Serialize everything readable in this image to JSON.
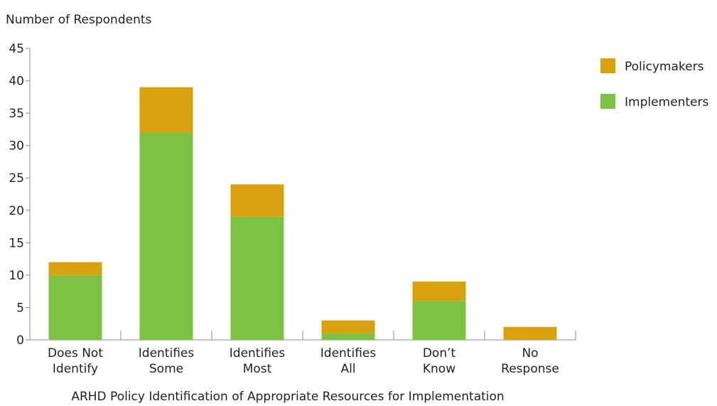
{
  "chart_data": {
    "type": "bar",
    "stacked": true,
    "title": "",
    "ylabel": "Number of Respondents",
    "xlabel": "ARHD Policy Identification of Appropriate Resources for Implementation",
    "ylim": [
      0,
      45
    ],
    "yticks": [
      0,
      5,
      10,
      15,
      20,
      25,
      30,
      35,
      40,
      45
    ],
    "grid": false,
    "legend_position": "right",
    "categories": [
      [
        "Does Not",
        "Identify"
      ],
      [
        "Identifies",
        "Some"
      ],
      [
        "Identifies",
        "Most"
      ],
      [
        "Identifies",
        "All"
      ],
      [
        "Don’t",
        "Know"
      ],
      [
        "No",
        "Response"
      ]
    ],
    "series": [
      {
        "name": "Implementers",
        "color": "#7dc242",
        "values": [
          10,
          32,
          19,
          1,
          6,
          0
        ]
      },
      {
        "name": "Policymakers",
        "color": "#d9a00f",
        "values": [
          2,
          7,
          5,
          2,
          3,
          2
        ]
      }
    ],
    "legend_order": [
      "Policymakers",
      "Implementers"
    ]
  }
}
